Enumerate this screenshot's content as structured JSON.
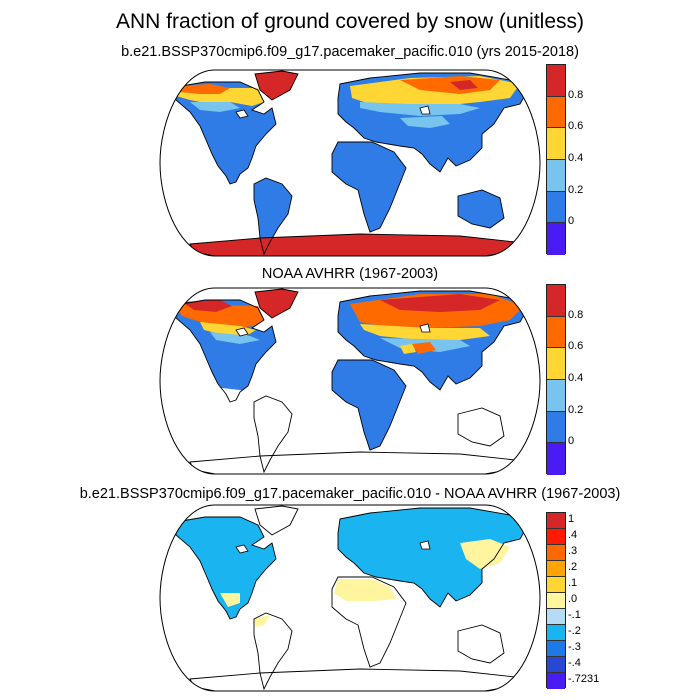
{
  "title": "ANN fraction of ground covered by snow (unitless)",
  "panels": [
    {
      "title": "b.e21.BSSP370cmip6.f09_g17.pacemaker_pacific.010 (yrs 2015-2018)"
    },
    {
      "title": "NOAA AVHRR (1967-2003)"
    },
    {
      "title": "b.e21.BSSP370cmip6.f09_g17.pacemaker_pacific.010 - NOAA AVHRR (1967-2003)"
    }
  ],
  "colorbars": {
    "abs": {
      "colors": [
        "#d62728",
        "#ff6a00",
        "#ffd633",
        "#78c4ee",
        "#2f7ce6",
        "#4a1cf5"
      ],
      "labels": [
        "0.8",
        "0.6",
        "0.4",
        "0.2",
        "0"
      ]
    },
    "diff": {
      "colors": [
        "#d62728",
        "#ff1a00",
        "#ff6a00",
        "#ffa400",
        "#ffd633",
        "#fff59e",
        "#b4dcf5",
        "#1ab4f0",
        "#1e78e6",
        "#2848d2",
        "#4a1cf5"
      ],
      "labels": [
        "1",
        ".4",
        ".3",
        ".2",
        ".1",
        ".0",
        "-.1",
        "-.2",
        "-.3",
        "-.4",
        "-.7231"
      ]
    }
  },
  "colors": {
    "land_snow_free": "#2f7ce6",
    "land_no_data": "#ffffff",
    "snow_high": "#d62728",
    "snow_mid": "#ff6a00",
    "snow_low": "#ffd633",
    "snow_trace": "#78c4ee",
    "diff_positive_small": "#fff59e",
    "diff_negative": "#1ab4f0",
    "coastline": "#000000"
  }
}
